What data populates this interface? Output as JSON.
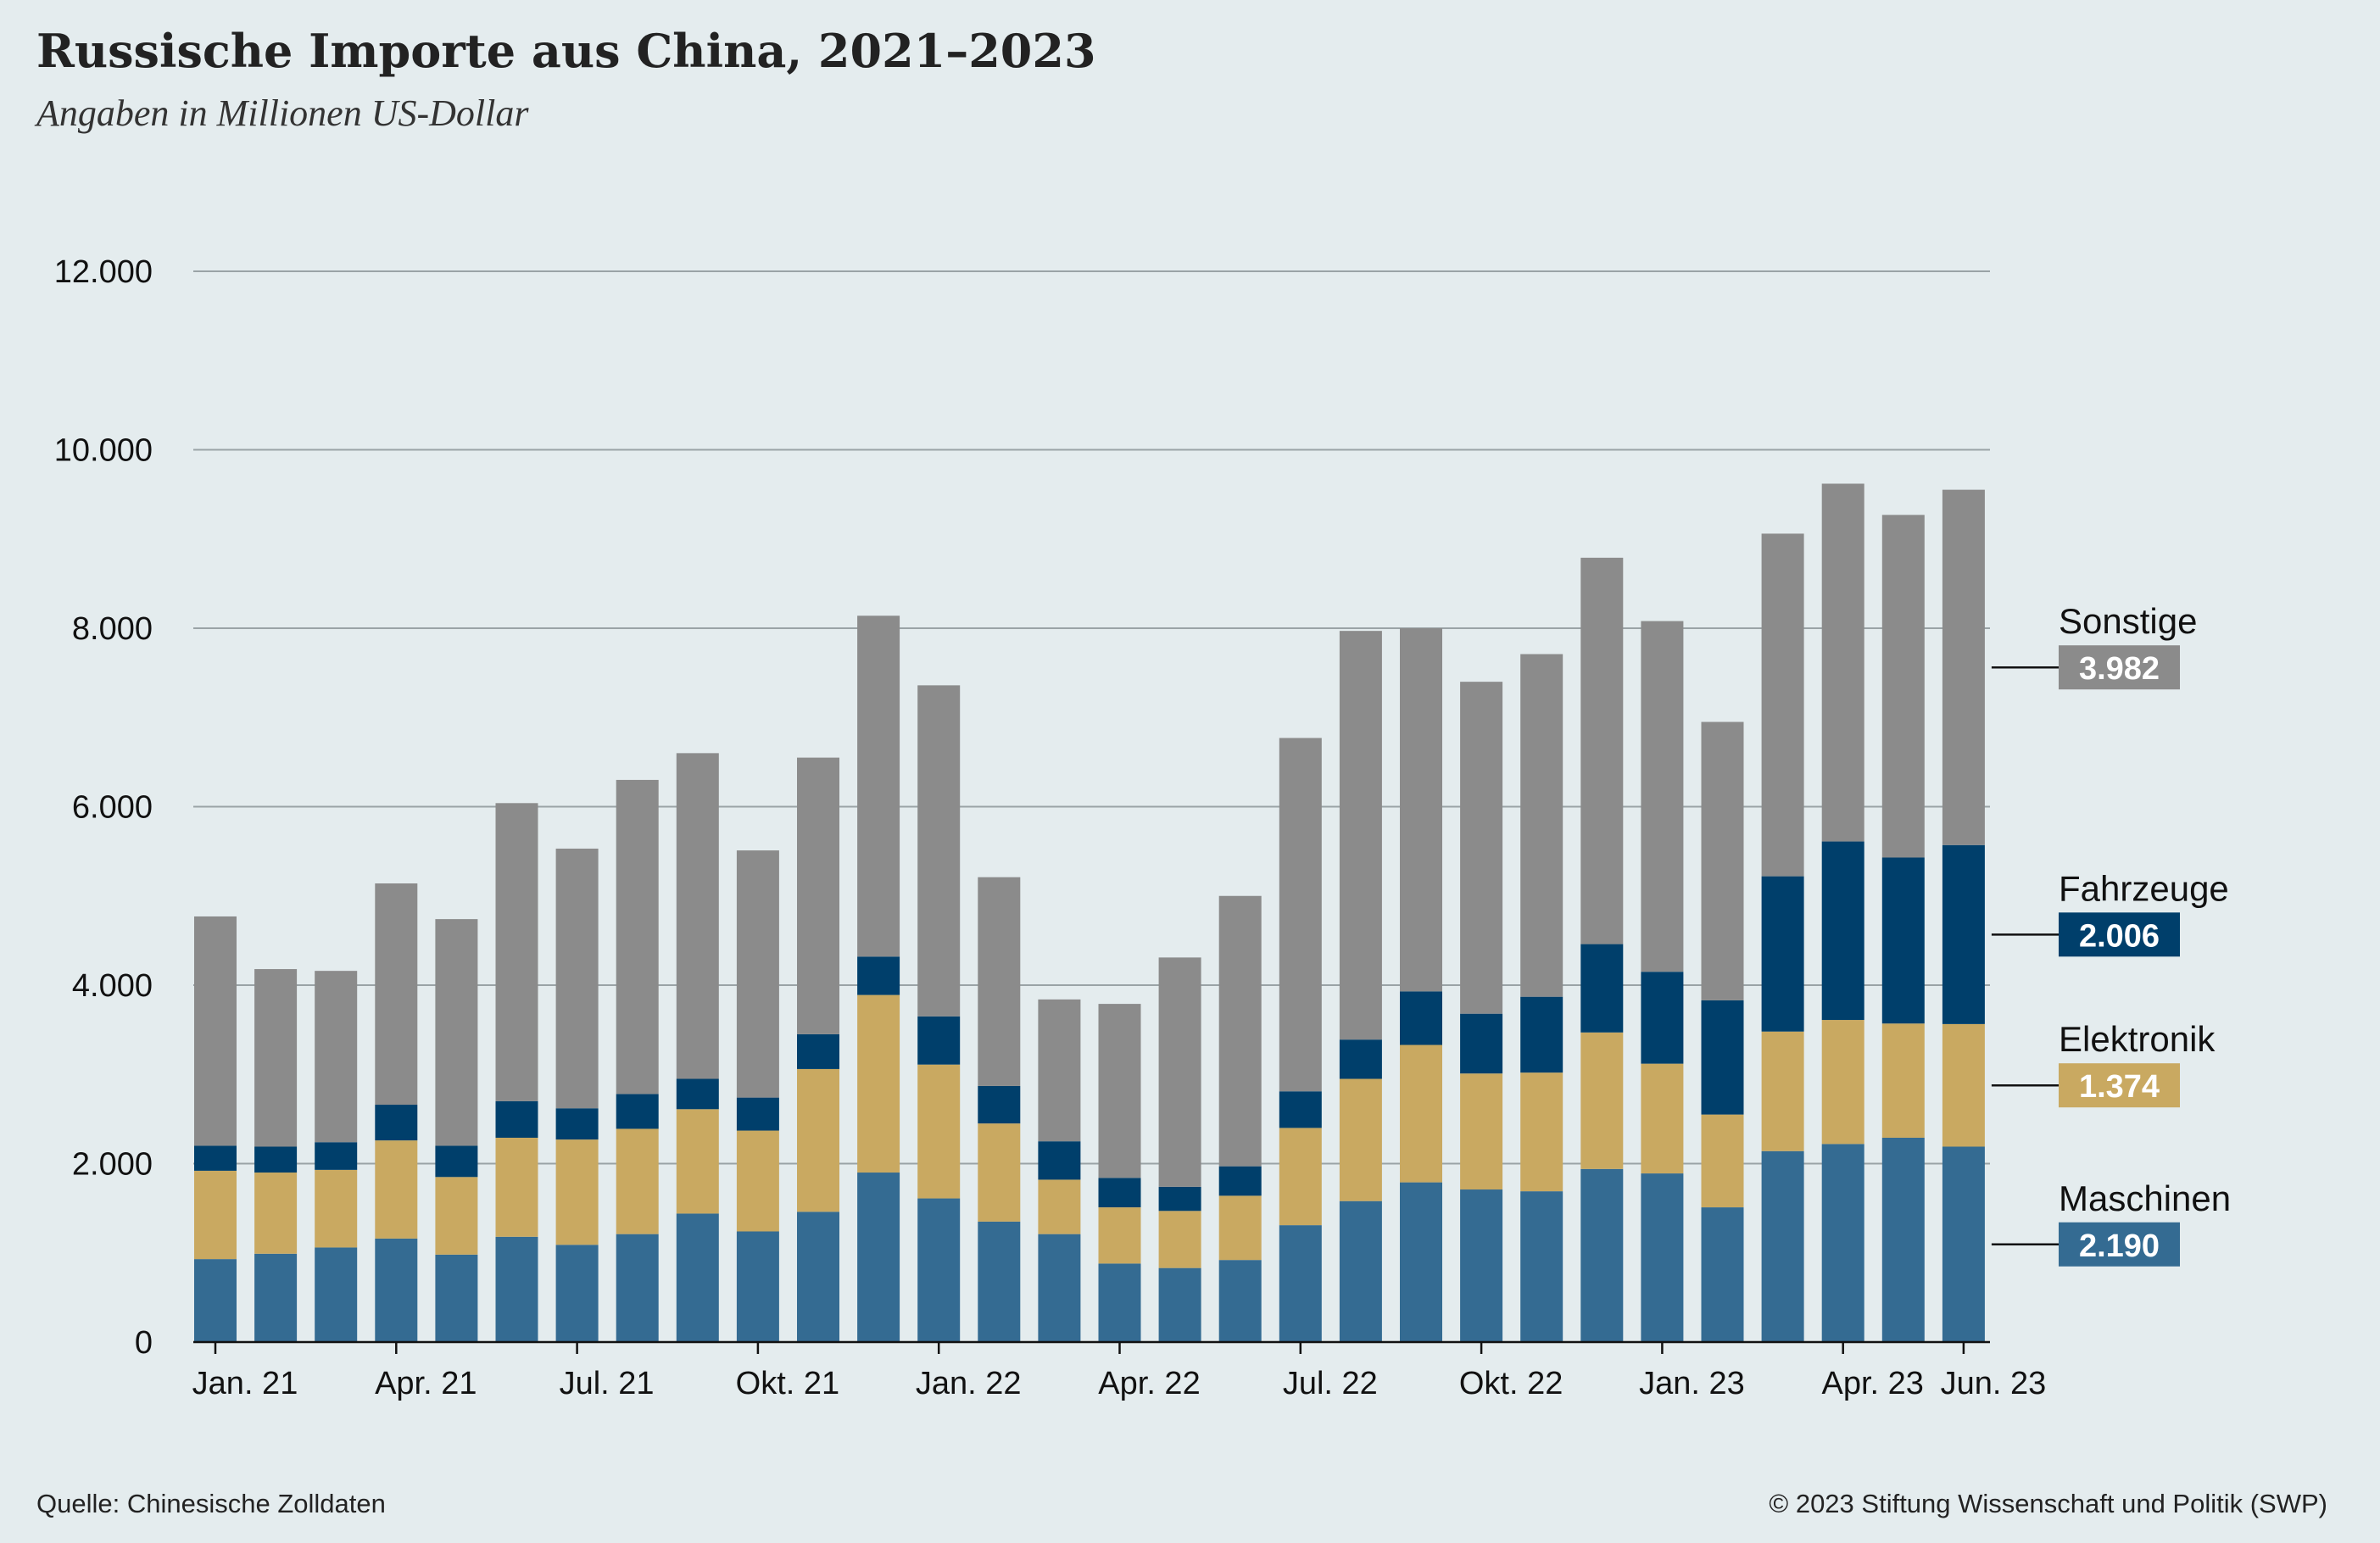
{
  "title": "Russische Importe aus China, 2021–2023",
  "subtitle": "Angaben in Millionen US-Dollar",
  "source": "Quelle: Chinesische Zolldaten",
  "copyright": "© 2023 Stiftung Wissenschaft und Politik (SWP)",
  "chart_data": {
    "type": "bar",
    "stacked": true,
    "ylim": [
      0,
      12000
    ],
    "yticks": [
      0,
      2000,
      4000,
      6000,
      8000,
      10000,
      12000
    ],
    "ytick_labels": [
      "0",
      "2.000",
      "4.000",
      "6.000",
      "8.000",
      "10.000",
      "12.000"
    ],
    "grid": true,
    "categories": [
      "Jan. 21",
      "Feb. 21",
      "Mär. 21",
      "Apr. 21",
      "Mai 21",
      "Jun. 21",
      "Jul. 21",
      "Aug. 21",
      "Sep. 21",
      "Okt. 21",
      "Nov. 21",
      "Dez. 21",
      "Jan. 22",
      "Feb. 22",
      "Mär. 22",
      "Apr. 22",
      "Mai 22",
      "Jun. 22",
      "Jul. 22",
      "Aug. 22",
      "Sep. 22",
      "Okt. 22",
      "Nov. 22",
      "Dez. 22",
      "Jan. 23",
      "Feb. 23",
      "Mär. 23",
      "Apr. 23",
      "Mai 23",
      "Jun. 23"
    ],
    "xtick_labels": [
      {
        "index": 0,
        "label": "Jan. 21"
      },
      {
        "index": 3,
        "label": "Apr. 21"
      },
      {
        "index": 6,
        "label": "Jul. 21"
      },
      {
        "index": 9,
        "label": "Okt. 21"
      },
      {
        "index": 12,
        "label": "Jan. 22"
      },
      {
        "index": 15,
        "label": "Apr. 22"
      },
      {
        "index": 18,
        "label": "Jul. 22"
      },
      {
        "index": 21,
        "label": "Okt. 22"
      },
      {
        "index": 24,
        "label": "Jan. 23"
      },
      {
        "index": 27,
        "label": "Apr. 23"
      },
      {
        "index": 29,
        "label": "Jun. 23"
      }
    ],
    "series": [
      {
        "name": "Maschinen",
        "color": "#346b92",
        "values": [
          930,
          990,
          1060,
          1160,
          980,
          1180,
          1090,
          1210,
          1440,
          1240,
          1460,
          1900,
          1610,
          1350,
          1210,
          880,
          830,
          920,
          1310,
          1580,
          1790,
          1710,
          1690,
          1940,
          1890,
          1510,
          2140,
          2220,
          2290,
          2190
        ],
        "last_label": "2.190"
      },
      {
        "name": "Elektronik",
        "color": "#c9a961",
        "values": [
          990,
          910,
          870,
          1100,
          870,
          1110,
          1180,
          1180,
          1170,
          1130,
          1600,
          1990,
          1500,
          1100,
          610,
          630,
          640,
          720,
          1090,
          1370,
          1540,
          1300,
          1330,
          1530,
          1230,
          1040,
          1340,
          1390,
          1280,
          1374
        ],
        "last_label": "1.374"
      },
      {
        "name": "Fahrzeuge",
        "color": "#003f6b",
        "values": [
          280,
          290,
          310,
          400,
          350,
          410,
          350,
          390,
          340,
          370,
          390,
          430,
          540,
          420,
          430,
          330,
          270,
          330,
          410,
          440,
          600,
          670,
          850,
          990,
          1030,
          1280,
          1740,
          2000,
          1860,
          2006
        ],
        "last_label": "2.006"
      },
      {
        "name": "Sonstige",
        "color": "#8b8b8b",
        "values": [
          2570,
          1990,
          1920,
          2480,
          2540,
          3340,
          2910,
          3520,
          3650,
          2770,
          3100,
          3820,
          3710,
          2340,
          1590,
          1950,
          2570,
          3030,
          3960,
          4580,
          4070,
          3720,
          3840,
          4330,
          3930,
          3120,
          3840,
          4010,
          3840,
          3982
        ],
        "last_label": "3.982"
      }
    ]
  }
}
